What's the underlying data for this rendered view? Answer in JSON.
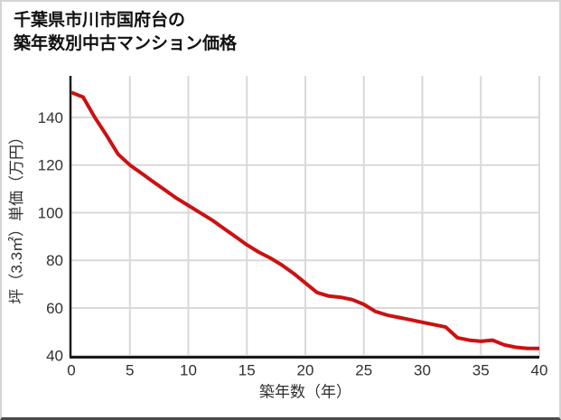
{
  "header": {
    "title_line1": "千葉県市川市国府台の",
    "title_line2": "築年数別中古マンション価格"
  },
  "chart_data": {
    "type": "line",
    "title": "千葉県市川市国府台の築年数別中古マンション価格",
    "xlabel": "築年数（年）",
    "ylabel": "坪（3.3㎡）単価（万円）",
    "x": [
      0,
      1,
      2,
      3,
      4,
      5,
      6,
      7,
      8,
      9,
      10,
      11,
      12,
      13,
      14,
      15,
      16,
      17,
      18,
      19,
      20,
      21,
      22,
      23,
      24,
      25,
      26,
      27,
      28,
      29,
      30,
      31,
      32,
      33,
      34,
      35,
      36,
      37,
      38,
      39,
      40
    ],
    "values": [
      150.5,
      148.5,
      140,
      132.5,
      124.5,
      120,
      116.5,
      113,
      109.5,
      106,
      103,
      100,
      97,
      93.5,
      90,
      86.5,
      83.5,
      81,
      78,
      74.5,
      70.5,
      66.5,
      65,
      64.5,
      63.5,
      61.5,
      58.5,
      57,
      56,
      55,
      54,
      53,
      52,
      47.5,
      46.5,
      46,
      46.5,
      44.5,
      43.5,
      43,
      43
    ],
    "xlim": [
      0,
      40
    ],
    "ylim": [
      40,
      157.4
    ],
    "xticks": [
      0,
      5,
      10,
      15,
      20,
      25,
      30,
      35,
      40
    ],
    "yticks": [
      40,
      60,
      80,
      100,
      120,
      140
    ],
    "grid": true,
    "legend": "none",
    "line_color": "#cc1111"
  },
  "colors": {
    "grid": "#d9d9d9",
    "axis": "#1a1a1a",
    "tick_text": "#303030",
    "frame_border": "#d4d4d4",
    "frame_bottom": "#4b4b4b"
  }
}
